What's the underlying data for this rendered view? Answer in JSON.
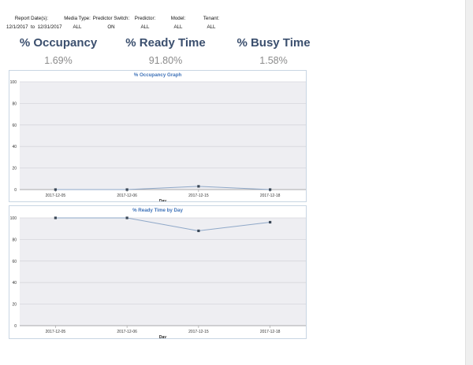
{
  "filters": [
    {
      "label": "Report Date(s):",
      "value": "12/1/2017  to  12/31/2017"
    },
    {
      "label": "Media Type:",
      "value": "ALL"
    },
    {
      "label": "Predictor Switch:",
      "value": "ON"
    },
    {
      "label": "Predictor:",
      "value": "ALL"
    },
    {
      "label": "Model:",
      "value": "ALL"
    },
    {
      "label": "Tenant:",
      "value": "ALL"
    }
  ],
  "kpis": [
    {
      "title": "% Occupancy",
      "value": "1.69%"
    },
    {
      "title": "% Ready Time",
      "value": "91.80%"
    },
    {
      "title": "% Busy Time",
      "value": "1.58%"
    }
  ],
  "colors": {
    "series_line": "#8fa8c8",
    "marker": "#3a4756",
    "plot_bg": "#eeeef2",
    "title": "#3f73b9"
  },
  "chart_data": [
    {
      "type": "line",
      "title": "% Occupancy Graph",
      "xlabel": "Day",
      "ylabel": "",
      "ylim": [
        0,
        100
      ],
      "yticks": [
        0,
        20,
        40,
        60,
        80,
        100
      ],
      "categories": [
        "2017-12-05",
        "2017-12-06",
        "2017-12-15",
        "2017-12-18"
      ],
      "series": [
        {
          "values": [
            0,
            0,
            3,
            0
          ]
        }
      ],
      "grid": true
    },
    {
      "type": "line",
      "title": "% Ready Time by Day",
      "xlabel": "Day",
      "ylabel": "",
      "ylim": [
        0,
        100
      ],
      "yticks": [
        0,
        20,
        40,
        60,
        80,
        100
      ],
      "categories": [
        "2017-12-05",
        "2017-12-06",
        "2017-12-15",
        "2017-12-18"
      ],
      "series": [
        {
          "values": [
            100,
            100,
            88,
            96
          ]
        }
      ],
      "grid": true
    }
  ]
}
